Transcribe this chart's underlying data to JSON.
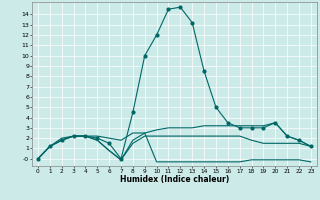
{
  "xlabel": "Humidex (Indice chaleur)",
  "bg_color": "#cceae8",
  "line_color": "#006666",
  "xlim": [
    -0.5,
    23.5
  ],
  "ylim": [
    -0.7,
    15.2
  ],
  "xticks": [
    0,
    1,
    2,
    3,
    4,
    5,
    6,
    7,
    8,
    9,
    10,
    11,
    12,
    13,
    14,
    15,
    16,
    17,
    18,
    19,
    20,
    21,
    22,
    23
  ],
  "yticks": [
    0,
    1,
    2,
    3,
    4,
    5,
    6,
    7,
    8,
    9,
    10,
    11,
    12,
    13,
    14
  ],
  "ytick_labels": [
    "-0",
    "1",
    "2",
    "3",
    "4",
    "5",
    "6",
    "7",
    "8",
    "9",
    "10",
    "11",
    "12",
    "13",
    "14"
  ],
  "line_main_x": [
    0,
    1,
    2,
    3,
    4,
    5,
    6,
    7,
    8,
    9,
    10,
    11,
    12,
    13,
    14,
    15,
    16,
    17,
    18,
    19,
    20,
    21,
    22,
    23
  ],
  "line_main_y": [
    0.0,
    1.2,
    1.8,
    2.2,
    2.2,
    2.0,
    1.5,
    0.0,
    4.5,
    10.0,
    12.0,
    14.5,
    14.7,
    13.2,
    8.5,
    5.0,
    3.5,
    3.0,
    3.0,
    3.0,
    3.5,
    2.2,
    1.8,
    1.2
  ],
  "line2_x": [
    0,
    1,
    2,
    3,
    4,
    5,
    6,
    7,
    8,
    9,
    10,
    11,
    12,
    13,
    14,
    15,
    16,
    17,
    18,
    19,
    20,
    21,
    22,
    23
  ],
  "line2_y": [
    0.0,
    1.2,
    2.0,
    2.2,
    2.2,
    2.2,
    2.0,
    1.8,
    2.5,
    2.5,
    2.8,
    3.0,
    3.0,
    3.0,
    3.2,
    3.2,
    3.2,
    3.2,
    3.2,
    3.2,
    3.5,
    2.2,
    1.8,
    1.2
  ],
  "line3_x": [
    0,
    1,
    2,
    3,
    4,
    5,
    6,
    7,
    8,
    9,
    10,
    11,
    12,
    13,
    14,
    15,
    16,
    17,
    18,
    19,
    20,
    21,
    22,
    23
  ],
  "line3_y": [
    0.0,
    1.2,
    1.8,
    2.2,
    2.2,
    1.8,
    0.8,
    -0.1,
    1.5,
    2.2,
    2.2,
    2.2,
    2.2,
    2.2,
    2.2,
    2.2,
    2.2,
    2.2,
    1.8,
    1.5,
    1.5,
    1.5,
    1.5,
    1.2
  ],
  "line4_x": [
    0,
    1,
    2,
    3,
    4,
    5,
    6,
    7,
    8,
    9,
    10,
    11,
    12,
    13,
    14,
    15,
    16,
    17,
    18,
    19,
    20,
    21,
    22,
    23
  ],
  "line4_y": [
    0.0,
    1.2,
    1.8,
    2.2,
    2.2,
    1.8,
    0.8,
    -0.1,
    1.8,
    2.5,
    -0.3,
    -0.3,
    -0.3,
    -0.3,
    -0.3,
    -0.3,
    -0.3,
    -0.3,
    -0.1,
    -0.1,
    -0.1,
    -0.1,
    -0.1,
    -0.3
  ]
}
